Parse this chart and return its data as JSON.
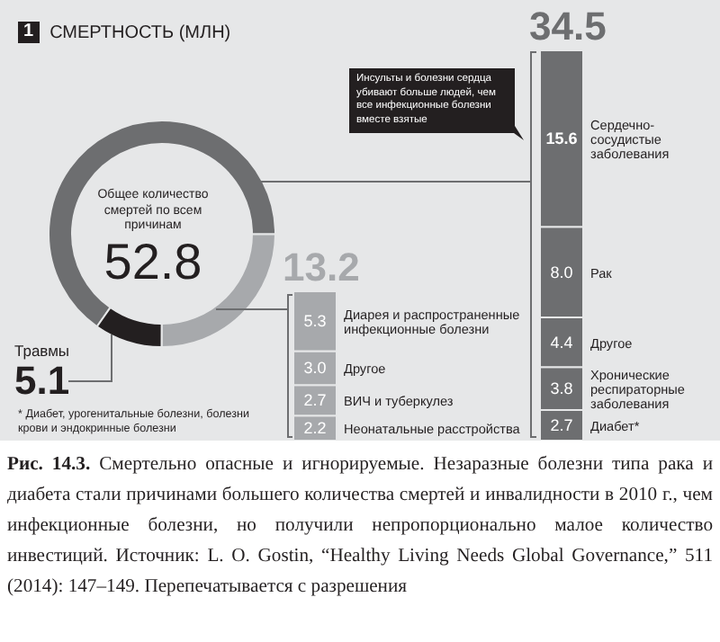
{
  "chart_data": [
    {
      "type": "donut",
      "title": "СМЕРТНОСТЬ (МЛН)",
      "categories": [
        null,
        null,
        "Травмы"
      ],
      "values": [
        34.5,
        13.2,
        5.1
      ],
      "colors": [
        "#6d6e70",
        "#a7a9ac",
        "#231f20"
      ],
      "value_labels": [
        null,
        null,
        "5.1"
      ],
      "annotations": [
        "1",
        "Общее количество смертей по всем причинам",
        "52.8",
        "* Диабет, урогенитальные болезни, болезни крови и эндокринные болезни",
        "Рис. 14.3. Смертельно опасные и игнорируемые. Незаразные болезни типа рака и диабета стали причинами большего количества смертей и инвалидности в 2010 г., чем инфекционные болезни, но получили непропорционально малое количество инвестиций. Источник: L. O. Gostin, “Healthy Living Needs Global Governance,” 511 (2014): 147–149. Перепечатывается с разрешения"
      ]
    },
    {
      "type": "bar",
      "stacked": true,
      "categories": [
        null
      ],
      "tick_labels": false,
      "totals": [
        "13.2"
      ],
      "series": [
        {
          "name": "Неонатальные расстройства",
          "color": "#a7a9ac",
          "values": [
            2.2
          ],
          "value_labels": [
            "2.2"
          ]
        },
        {
          "name": "ВИЧ и туберкулез",
          "color": "#a7a9ac",
          "values": [
            2.7
          ],
          "value_labels": [
            "2.7"
          ]
        },
        {
          "name": "Другое",
          "color": "#a7a9ac",
          "values": [
            3.0
          ],
          "value_labels": [
            "3.0"
          ]
        },
        {
          "name": "Диарея и распространенные инфекционные болезни",
          "color": "#a7a9ac",
          "values": [
            5.3
          ],
          "value_labels": [
            "5.3"
          ]
        }
      ]
    },
    {
      "type": "bar",
      "stacked": true,
      "categories": [
        null
      ],
      "tick_labels": false,
      "totals": [
        "34.5"
      ],
      "annotations": [
        "Инсульты и болезни сердца убивают больше людей, чем все инфекционные болезни вместе взятые"
      ],
      "series": [
        {
          "name": "Диабет*",
          "color": "#6d6e70",
          "values": [
            2.7
          ],
          "value_labels": [
            "2.7"
          ]
        },
        {
          "name": "Хронические респираторные заболевания",
          "color": "#6d6e70",
          "values": [
            3.8
          ],
          "value_labels": [
            "3.8"
          ]
        },
        {
          "name": "Другое",
          "color": "#6d6e70",
          "values": [
            4.4
          ],
          "value_labels": [
            "4.4"
          ]
        },
        {
          "name": "Рак",
          "color": "#6d6e70",
          "values": [
            8.0
          ],
          "value_labels": [
            "8.0"
          ]
        },
        {
          "name": "Сердечно-сосудистые заболевания",
          "color": "#6d6e70",
          "values": [
            15.6
          ],
          "value_labels": [
            "15.6"
          ]
        }
      ]
    }
  ]
}
